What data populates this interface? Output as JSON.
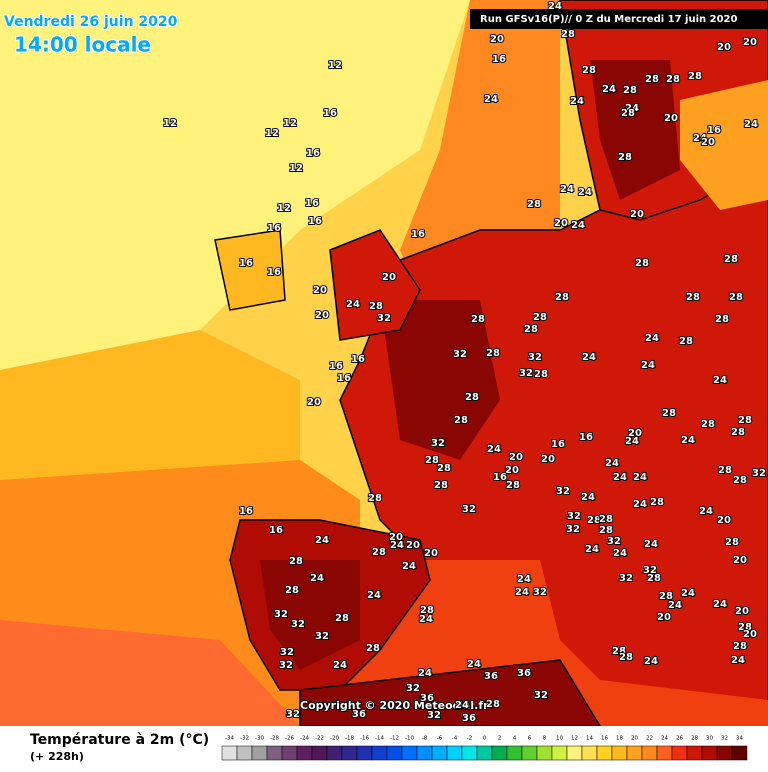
{
  "header": {
    "date": "Vendredi 26 juin 2020",
    "time": "14:00 locale",
    "run": "Run GFSv16(P)// 0 Z du Mercredi 17 juin 2020"
  },
  "map": {
    "copyright": "Copyright © 2020 Meteociel.fr",
    "labels": [
      12,
      12,
      12,
      12,
      16,
      16,
      12,
      12,
      16,
      16,
      16,
      16,
      16,
      20,
      24,
      28,
      32,
      20,
      16,
      20,
      16,
      16,
      16,
      20,
      32,
      28,
      32,
      32,
      28,
      28,
      28,
      32,
      28,
      28,
      28,
      28,
      32,
      16,
      16,
      24,
      20,
      28,
      24,
      20,
      20,
      24,
      28,
      24,
      28,
      24,
      32,
      32,
      32,
      28,
      32,
      32,
      24,
      28,
      28,
      24,
      32,
      24,
      36,
      24,
      36,
      24,
      28,
      36,
      32,
      36,
      32,
      36,
      32,
      24,
      24,
      32,
      24,
      20,
      20,
      16,
      28,
      20,
      16,
      16,
      32,
      24,
      32,
      32,
      28,
      28,
      28,
      24,
      32,
      24,
      24,
      32,
      32,
      28,
      28,
      24,
      20,
      24,
      24,
      20,
      28,
      28,
      24,
      24,
      28,
      28,
      20,
      20,
      28,
      20,
      24,
      28,
      24,
      24,
      24,
      24,
      24,
      20,
      28,
      28,
      28,
      28,
      24,
      32,
      28,
      28,
      24,
      28,
      24,
      24,
      24,
      28,
      28,
      28,
      28,
      28,
      28,
      28,
      28,
      28,
      24,
      28,
      20,
      16,
      24,
      24,
      28,
      24,
      28,
      24,
      28,
      28,
      28,
      28,
      20,
      24,
      16,
      20,
      20,
      20,
      28,
      20,
      28,
      24,
      24,
      20,
      24,
      24
    ]
  },
  "legend": {
    "title": "Température à 2m (°C)",
    "lead": "(+ 228h)",
    "ticks": [
      -34,
      -32,
      -30,
      -28,
      -26,
      -24,
      -22,
      -20,
      -18,
      -16,
      -14,
      -12,
      -10,
      -8,
      -6,
      -4,
      -2,
      0,
      2,
      4,
      6,
      8,
      10,
      12,
      14,
      16,
      18,
      20,
      22,
      24,
      26,
      28,
      30,
      32,
      34
    ],
    "colors": [
      "#e0e0e0",
      "#c0c0c0",
      "#a0a0a0",
      "#806080",
      "#704070",
      "#602060",
      "#501858",
      "#402070",
      "#302890",
      "#2030b0",
      "#1040d0",
      "#0050e8",
      "#0070ff",
      "#0090ff",
      "#00b0ff",
      "#00d0ff",
      "#00e8e8",
      "#00c8a0",
      "#00b050",
      "#30c030",
      "#60d030",
      "#a0e030",
      "#d0f040",
      "#fff27a",
      "#ffe050",
      "#ffd020",
      "#ffb820",
      "#ffa020",
      "#ff8820",
      "#ff6020",
      "#f03010",
      "#d01808",
      "#b00c04",
      "#8a0602",
      "#600000"
    ]
  }
}
